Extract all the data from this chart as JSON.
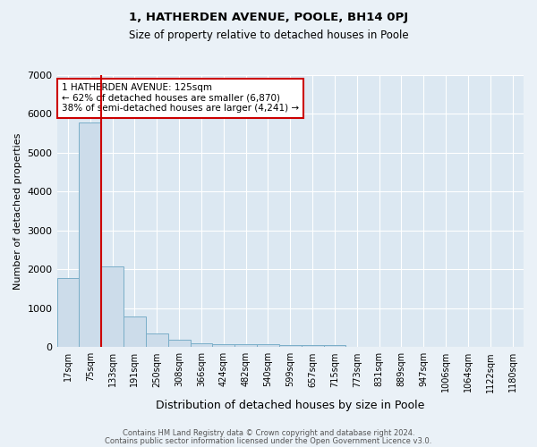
{
  "title": "1, HATHERDEN AVENUE, POOLE, BH14 0PJ",
  "subtitle": "Size of property relative to detached houses in Poole",
  "xlabel": "Distribution of detached houses by size in Poole",
  "ylabel": "Number of detached properties",
  "categories": [
    "17sqm",
    "75sqm",
    "133sqm",
    "191sqm",
    "250sqm",
    "308sqm",
    "366sqm",
    "424sqm",
    "482sqm",
    "540sqm",
    "599sqm",
    "657sqm",
    "715sqm",
    "773sqm",
    "831sqm",
    "889sqm",
    "947sqm",
    "1006sqm",
    "1064sqm",
    "1122sqm",
    "1180sqm"
  ],
  "values": [
    1780,
    5780,
    2080,
    790,
    350,
    185,
    110,
    80,
    75,
    65,
    55,
    50,
    45,
    15,
    10,
    8,
    5,
    4,
    3,
    2,
    5
  ],
  "bar_color": "#ccdcea",
  "bar_edge_color": "#7aaec8",
  "property_line_color": "#cc0000",
  "annotation_text": "1 HATHERDEN AVENUE: 125sqm\n← 62% of detached houses are smaller (6,870)\n38% of semi-detached houses are larger (4,241) →",
  "annotation_box_color": "#cc0000",
  "ylim": [
    0,
    7000
  ],
  "yticks": [
    0,
    1000,
    2000,
    3000,
    4000,
    5000,
    6000,
    7000
  ],
  "footer_line1": "Contains HM Land Registry data © Crown copyright and database right 2024.",
  "footer_line2": "Contains public sector information licensed under the Open Government Licence v3.0.",
  "bg_color": "#eaf1f7",
  "plot_bg_color": "#dce8f2"
}
